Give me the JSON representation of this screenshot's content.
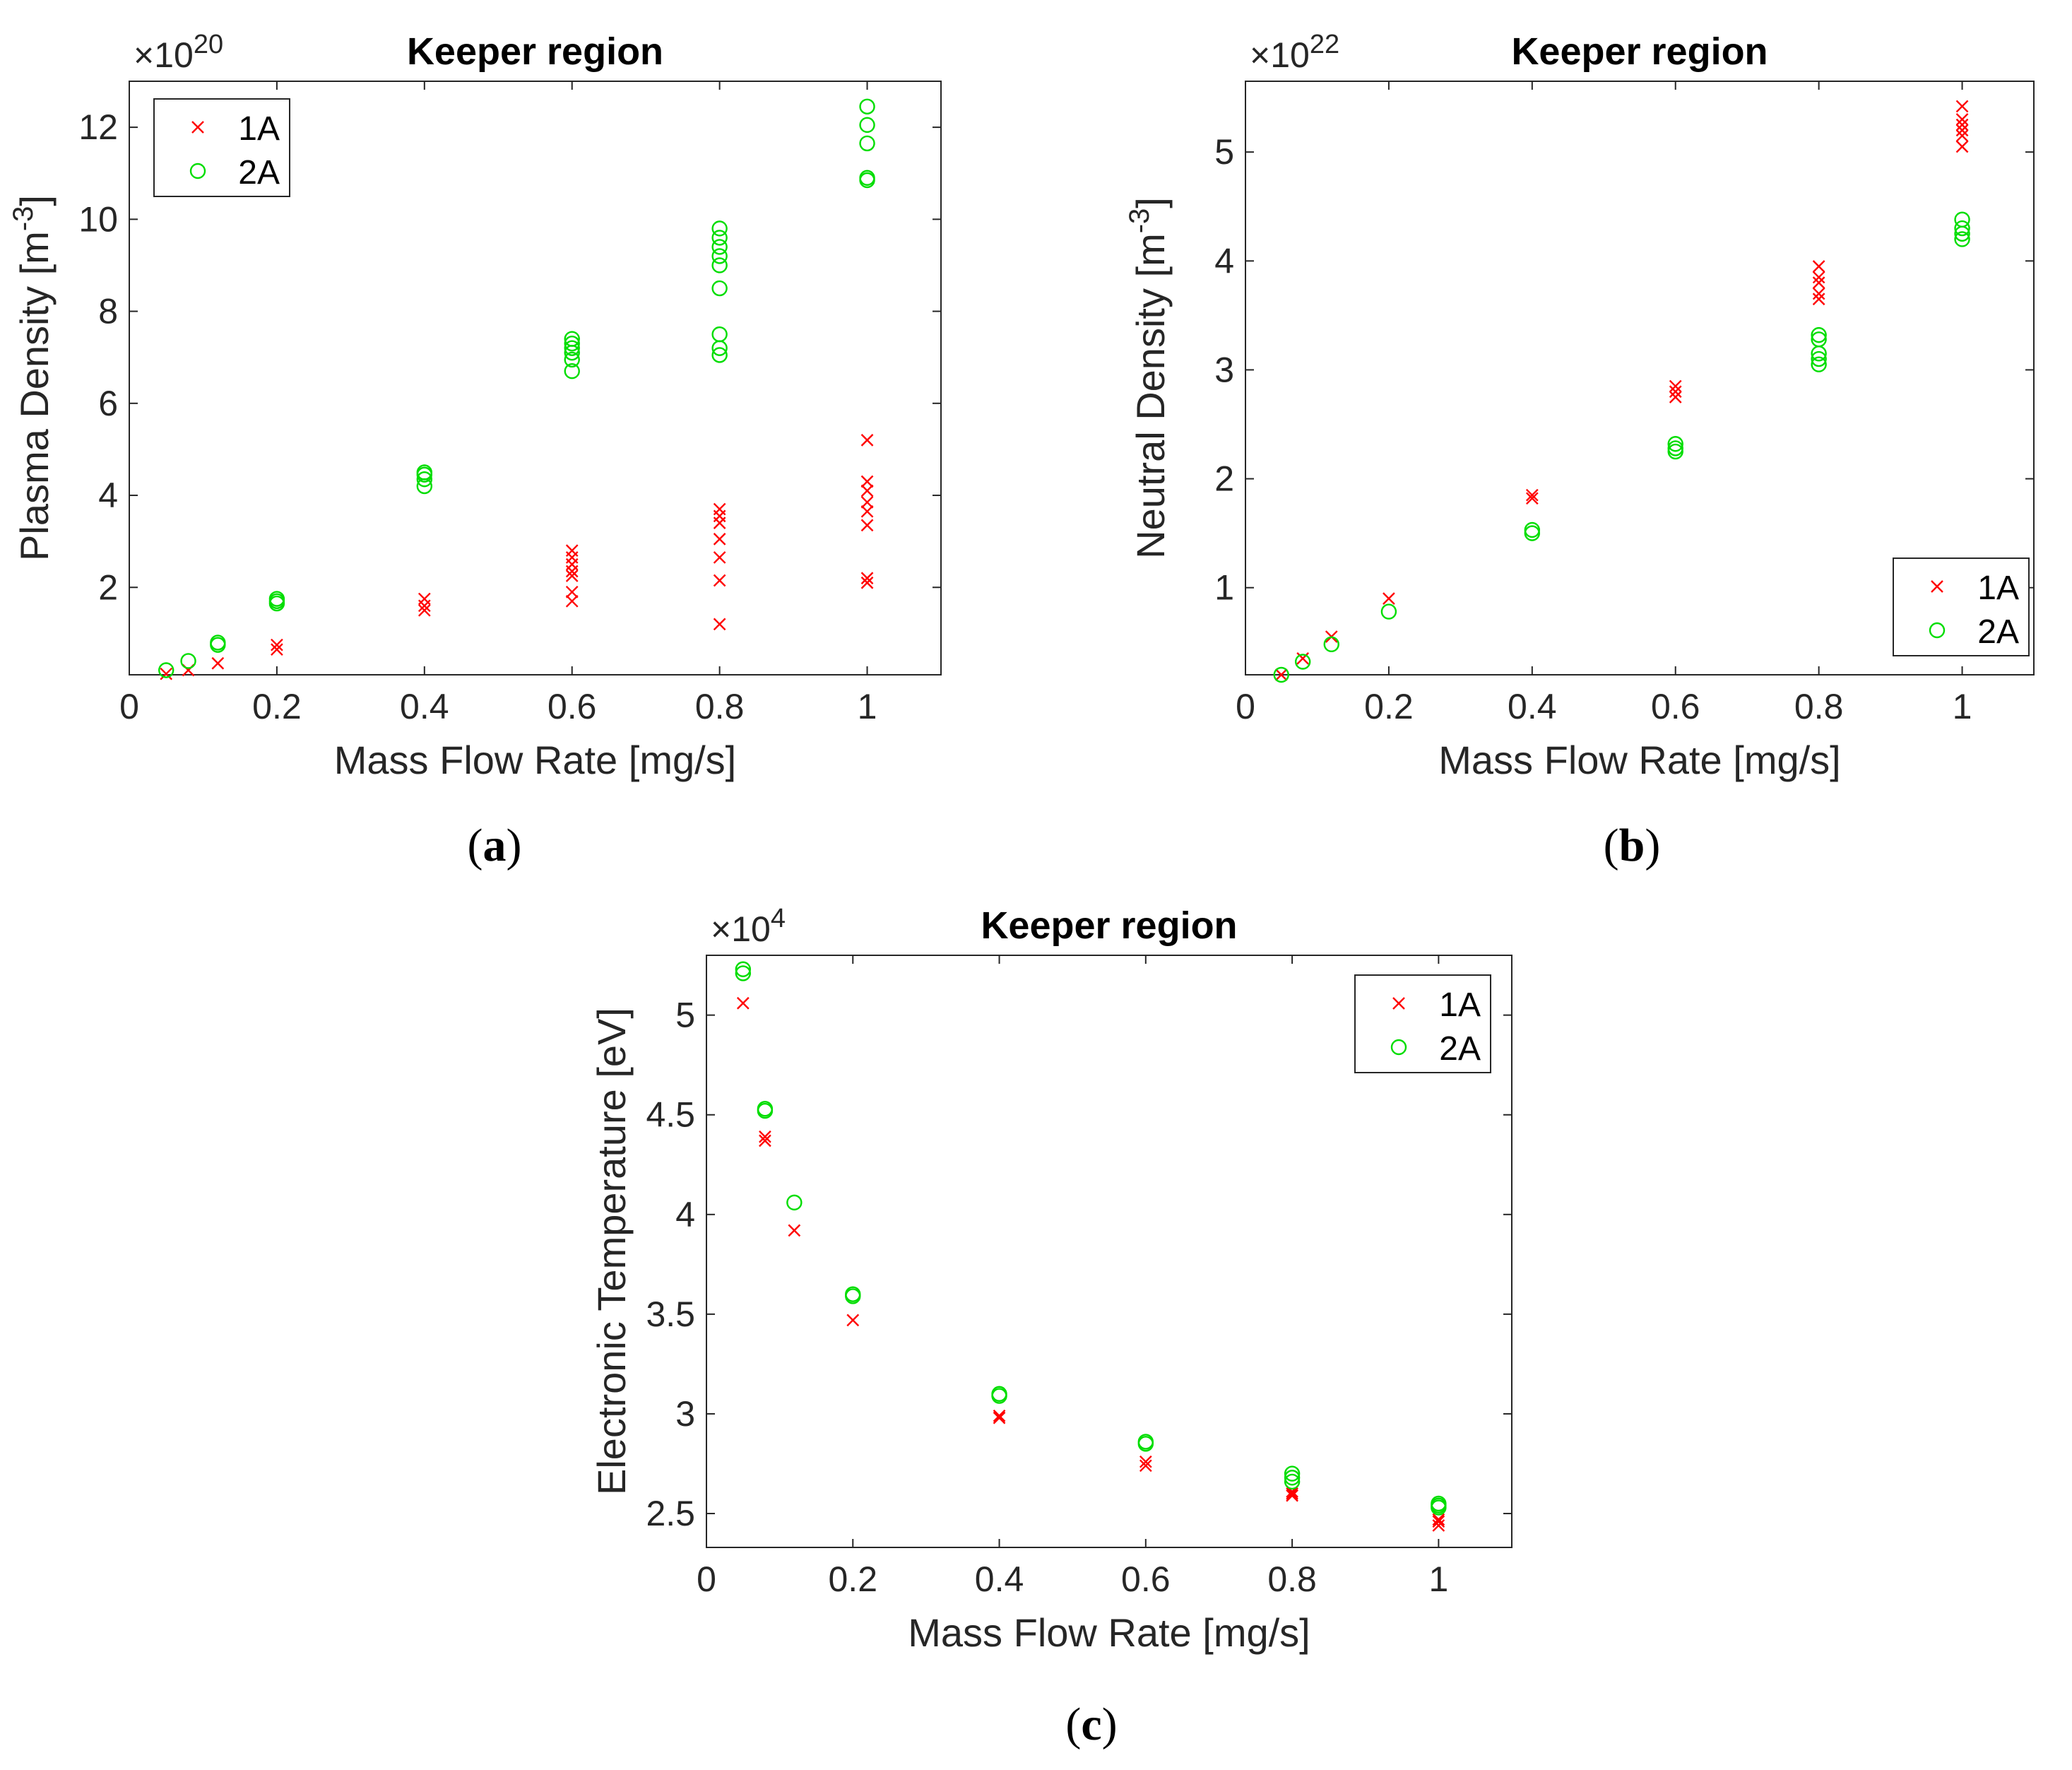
{
  "figure_captions": [
    {
      "open": "(",
      "letter": "a",
      "close": ")"
    },
    {
      "open": "(",
      "letter": "b",
      "close": ")"
    },
    {
      "open": "(",
      "letter": "c",
      "close": ")"
    }
  ],
  "colors": {
    "series_1A": "#ff0000",
    "series_2A": "#00dd00",
    "axis": "#262626"
  },
  "chart_data": [
    {
      "type": "scatter",
      "title": "Keeper region",
      "xlabel": "Mass Flow Rate [mg/s]",
      "ylabel": "Plasma Density [m",
      "ylabel_sup": "-3",
      "ylabel_close": "]",
      "exponent_prefix": "×10",
      "exponent": "20",
      "xlim": [
        0,
        1.1
      ],
      "ylim": [
        0.1,
        13
      ],
      "xticks": [
        0,
        0.2,
        0.4,
        0.6,
        0.8,
        1
      ],
      "xtick_labels": [
        "0",
        "0.2",
        "0.4",
        "0.6",
        "0.8",
        "1"
      ],
      "yticks": [
        2,
        4,
        6,
        8,
        10,
        12
      ],
      "ytick_labels": [
        "2",
        "4",
        "6",
        "8",
        "10",
        "12"
      ],
      "legend": {
        "position": "top-left",
        "entries": [
          "1A",
          "2A"
        ]
      },
      "series": [
        {
          "name": "1A",
          "marker": "x",
          "points": [
            [
              0.05,
              0.12
            ],
            [
              0.08,
              0.2
            ],
            [
              0.12,
              0.35
            ],
            [
              0.2,
              0.65
            ],
            [
              0.2,
              0.75
            ],
            [
              0.4,
              1.5
            ],
            [
              0.4,
              1.6
            ],
            [
              0.4,
              1.75
            ],
            [
              0.6,
              1.7
            ],
            [
              0.6,
              1.9
            ],
            [
              0.6,
              2.25
            ],
            [
              0.6,
              2.35
            ],
            [
              0.6,
              2.5
            ],
            [
              0.6,
              2.65
            ],
            [
              0.6,
              2.8
            ],
            [
              0.8,
              1.2
            ],
            [
              0.8,
              2.15
            ],
            [
              0.8,
              2.65
            ],
            [
              0.8,
              3.05
            ],
            [
              0.8,
              3.4
            ],
            [
              0.8,
              3.55
            ],
            [
              0.8,
              3.7
            ],
            [
              1,
              2.1
            ],
            [
              1,
              2.2
            ],
            [
              1,
              3.35
            ],
            [
              1,
              3.65
            ],
            [
              1,
              3.85
            ],
            [
              1,
              4.1
            ],
            [
              1,
              4.3
            ],
            [
              1,
              5.2
            ]
          ]
        },
        {
          "name": "2A",
          "marker": "o",
          "points": [
            [
              0.05,
              0.2
            ],
            [
              0.08,
              0.4
            ],
            [
              0.12,
              0.75
            ],
            [
              0.12,
              0.8
            ],
            [
              0.2,
              1.65
            ],
            [
              0.2,
              1.7
            ],
            [
              0.2,
              1.75
            ],
            [
              0.4,
              4.2
            ],
            [
              0.4,
              4.35
            ],
            [
              0.4,
              4.45
            ],
            [
              0.4,
              4.5
            ],
            [
              0.6,
              6.7
            ],
            [
              0.6,
              6.95
            ],
            [
              0.6,
              7.1
            ],
            [
              0.6,
              7.2
            ],
            [
              0.6,
              7.3
            ],
            [
              0.6,
              7.4
            ],
            [
              0.8,
              7.05
            ],
            [
              0.8,
              7.2
            ],
            [
              0.8,
              7.5
            ],
            [
              0.8,
              8.5
            ],
            [
              0.8,
              9.0
            ],
            [
              0.8,
              9.2
            ],
            [
              0.8,
              9.4
            ],
            [
              0.8,
              9.6
            ],
            [
              0.8,
              9.8
            ],
            [
              1,
              10.85
            ],
            [
              1,
              10.9
            ],
            [
              1,
              11.65
            ],
            [
              1,
              12.05
            ],
            [
              1,
              12.45
            ]
          ]
        }
      ]
    },
    {
      "type": "scatter",
      "title": "Keeper region",
      "xlabel": "Mass Flow Rate [mg/s]",
      "ylabel": "Neutral Density [m",
      "ylabel_sup": "-3",
      "ylabel_close": "]",
      "exponent_prefix": "×10",
      "exponent": "22",
      "xlim": [
        0,
        1.1
      ],
      "ylim": [
        0.2,
        5.65
      ],
      "xticks": [
        0,
        0.2,
        0.4,
        0.6,
        0.8,
        1
      ],
      "xtick_labels": [
        "0",
        "0.2",
        "0.4",
        "0.6",
        "0.8",
        "1"
      ],
      "yticks": [
        1,
        2,
        3,
        4,
        5
      ],
      "ytick_labels": [
        "1",
        "2",
        "3",
        "4",
        "5"
      ],
      "legend": {
        "position": "bottom-right",
        "entries": [
          "1A",
          "2A"
        ]
      },
      "series": [
        {
          "name": "1A",
          "marker": "x",
          "points": [
            [
              0.05,
              0.2
            ],
            [
              0.08,
              0.35
            ],
            [
              0.12,
              0.55
            ],
            [
              0.2,
              0.9
            ],
            [
              0.4,
              1.82
            ],
            [
              0.4,
              1.85
            ],
            [
              0.6,
              2.75
            ],
            [
              0.6,
              2.8
            ],
            [
              0.6,
              2.85
            ],
            [
              0.8,
              3.65
            ],
            [
              0.8,
              3.7
            ],
            [
              0.8,
              3.8
            ],
            [
              0.8,
              3.85
            ],
            [
              0.8,
              3.95
            ],
            [
              1,
              5.05
            ],
            [
              1,
              5.15
            ],
            [
              1,
              5.2
            ],
            [
              1,
              5.25
            ],
            [
              1,
              5.3
            ],
            [
              1,
              5.42
            ]
          ]
        },
        {
          "name": "2A",
          "marker": "o",
          "points": [
            [
              0.05,
              0.2
            ],
            [
              0.08,
              0.32
            ],
            [
              0.12,
              0.48
            ],
            [
              0.2,
              0.78
            ],
            [
              0.4,
              1.5
            ],
            [
              0.4,
              1.53
            ],
            [
              0.6,
              2.25
            ],
            [
              0.6,
              2.28
            ],
            [
              0.6,
              2.32
            ],
            [
              0.8,
              3.05
            ],
            [
              0.8,
              3.1
            ],
            [
              0.8,
              3.15
            ],
            [
              0.8,
              3.28
            ],
            [
              0.8,
              3.32
            ],
            [
              1,
              4.2
            ],
            [
              1,
              4.25
            ],
            [
              1,
              4.3
            ],
            [
              1,
              4.38
            ]
          ]
        }
      ]
    },
    {
      "type": "scatter",
      "title": "Keeper region",
      "xlabel": "Mass Flow Rate [mg/s]",
      "ylabel": "Electronic Temperature [eV]",
      "ylabel_sup": "",
      "ylabel_close": "",
      "exponent_prefix": "×10",
      "exponent": "4",
      "xlim": [
        0,
        1.1
      ],
      "ylim": [
        2.33,
        5.3
      ],
      "xticks": [
        0,
        0.2,
        0.4,
        0.6,
        0.8,
        1
      ],
      "xtick_labels": [
        "0",
        "0.2",
        "0.4",
        "0.6",
        "0.8",
        "1"
      ],
      "yticks": [
        2.5,
        3,
        3.5,
        4,
        4.5,
        5
      ],
      "ytick_labels": [
        "2.5",
        "3",
        "3.5",
        "4",
        "4.5",
        "5"
      ],
      "legend": {
        "position": "top-right",
        "entries": [
          "1A",
          "2A"
        ]
      },
      "series": [
        {
          "name": "1A",
          "marker": "x",
          "points": [
            [
              0.05,
              5.06
            ],
            [
              0.08,
              4.37
            ],
            [
              0.08,
              4.39
            ],
            [
              0.12,
              3.92
            ],
            [
              0.2,
              3.47
            ],
            [
              0.4,
              2.98
            ],
            [
              0.4,
              2.99
            ],
            [
              0.6,
              2.74
            ],
            [
              0.6,
              2.76
            ],
            [
              0.8,
              2.59
            ],
            [
              0.8,
              2.6
            ],
            [
              0.8,
              2.61
            ],
            [
              1,
              2.44
            ],
            [
              1,
              2.46
            ],
            [
              1,
              2.47
            ]
          ]
        },
        {
          "name": "2A",
          "marker": "o",
          "points": [
            [
              0.05,
              5.21
            ],
            [
              0.05,
              5.23
            ],
            [
              0.08,
              4.52
            ],
            [
              0.08,
              4.53
            ],
            [
              0.12,
              4.06
            ],
            [
              0.2,
              3.59
            ],
            [
              0.2,
              3.6
            ],
            [
              0.4,
              3.09
            ],
            [
              0.4,
              3.1
            ],
            [
              0.6,
              2.85
            ],
            [
              0.6,
              2.86
            ],
            [
              0.8,
              2.66
            ],
            [
              0.8,
              2.68
            ],
            [
              0.8,
              2.7
            ],
            [
              1,
              2.53
            ],
            [
              1,
              2.54
            ],
            [
              1,
              2.55
            ]
          ]
        }
      ]
    }
  ]
}
